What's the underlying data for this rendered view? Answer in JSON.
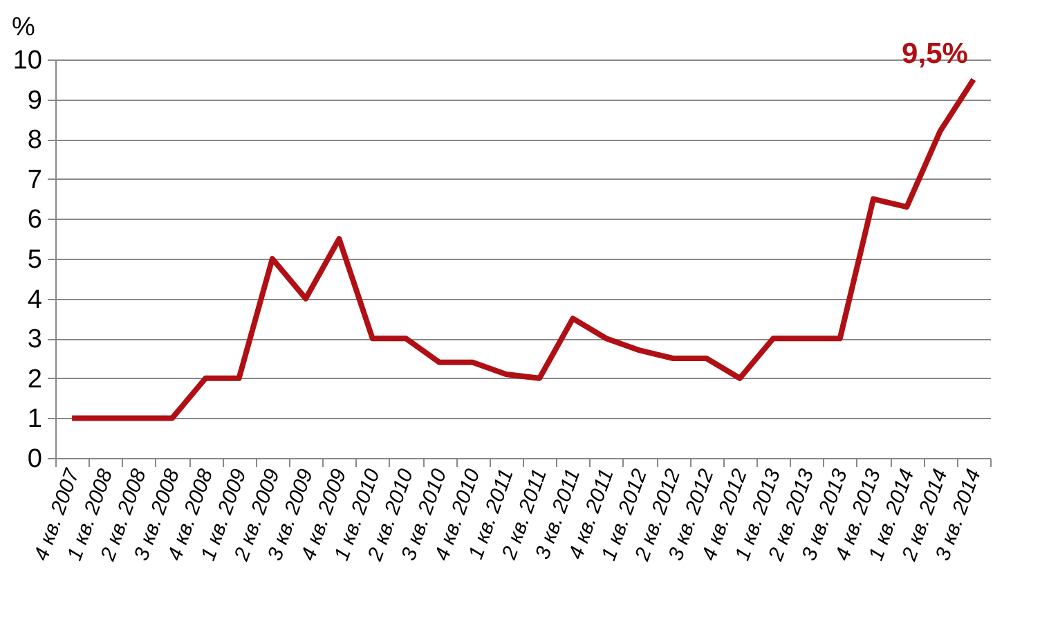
{
  "chart_data": {
    "type": "line",
    "ylabel": "%",
    "categories": [
      "4 кв. 2007",
      "1 кв. 2008",
      "2 кв. 2008",
      "3 кв. 2008",
      "4 кв. 2008",
      "1 кв. 2009",
      "2 кв. 2009",
      "3 кв. 2009",
      "4 кв. 2009",
      "1 кв. 2010",
      "2 кв. 2010",
      "3 кв. 2010",
      "4 кв. 2010",
      "1 кв. 2011",
      "2 кв. 2011",
      "3 кв. 2011",
      "4 кв. 2011",
      "1 кв. 2012",
      "2 кв. 2012",
      "3 кв. 2012",
      "4 кв. 2012",
      "1 кв. 2013",
      "2 кв. 2013",
      "3 кв. 2013",
      "4 кв. 2013",
      "1 кв. 2014",
      "2 кв. 2014",
      "3 кв. 2014"
    ],
    "series": [
      {
        "color": "#b00f14",
        "values": [
          1,
          1,
          1,
          1,
          2,
          2,
          5,
          4,
          5.5,
          3,
          3,
          2.4,
          2.4,
          2.1,
          2,
          3.5,
          3,
          2.7,
          2.5,
          2.5,
          2,
          3,
          3,
          3,
          6.5,
          6.3,
          8.2,
          9.5
        ]
      }
    ],
    "ylim": [
      0,
      10
    ],
    "yticks": [
      0,
      1,
      2,
      3,
      4,
      5,
      6,
      7,
      8,
      9,
      10
    ],
    "grid": "y",
    "marker": "none",
    "line_style": "solid",
    "annotations": [
      {
        "text": "9,5%",
        "x": "3 кв. 2014",
        "y": 9.5
      }
    ]
  }
}
